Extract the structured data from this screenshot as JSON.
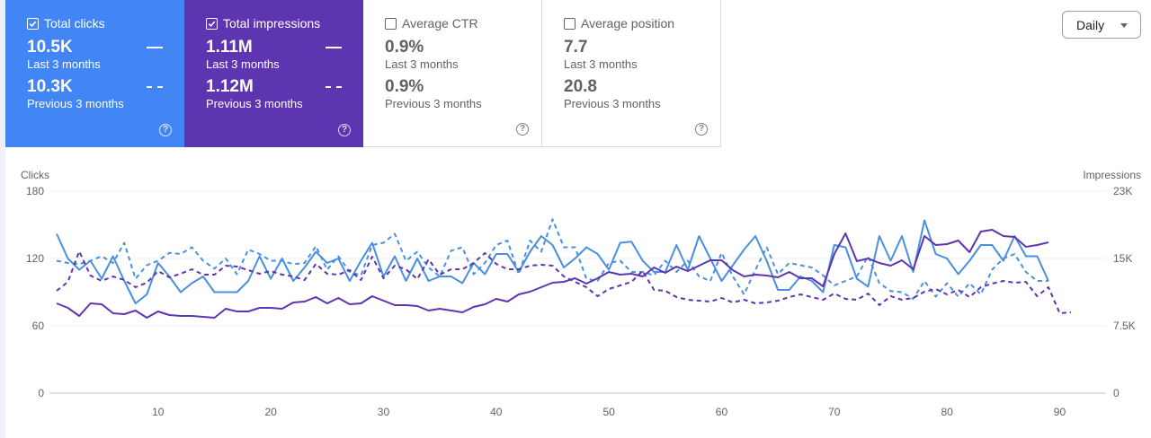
{
  "filter": {
    "granularity_label": "Daily"
  },
  "cards": [
    {
      "title": "Total clicks",
      "checked": true,
      "current_value": "10.5K",
      "current_period": "Last 3 months",
      "previous_value": "10.3K",
      "previous_period": "Previous 3 months",
      "color": "#4285f4"
    },
    {
      "title": "Total impressions",
      "checked": true,
      "current_value": "1.11M",
      "current_period": "Last 3 months",
      "previous_value": "1.12M",
      "previous_period": "Previous 3 months",
      "color": "#5e35b1"
    },
    {
      "title": "Average CTR",
      "checked": false,
      "current_value": "0.9%",
      "current_period": "Last 3 months",
      "previous_value": "0.9%",
      "previous_period": "Previous 3 months",
      "color": "#ffffff"
    },
    {
      "title": "Average position",
      "checked": false,
      "current_value": "7.7",
      "current_period": "Last 3 months",
      "previous_value": "20.8",
      "previous_period": "Previous 3 months",
      "color": "#ffffff"
    }
  ],
  "help_icon_glyph": "?",
  "chart_data": {
    "type": "line",
    "ylabel_left": "Clicks",
    "ylabel_right": "Impressions",
    "ylim_left": [
      0,
      180
    ],
    "ylim_right": [
      0,
      22500
    ],
    "yticks_left": [
      "0",
      "60",
      "120",
      "180"
    ],
    "yticks_right": [
      "0",
      "7.5K",
      "15K",
      "23K"
    ],
    "xlim": [
      1,
      92
    ],
    "xticks": [
      10,
      20,
      30,
      40,
      50,
      60,
      70,
      80,
      90
    ],
    "grid": true,
    "series": [
      {
        "axis": "left",
        "style": "solid",
        "color": "#4a8fe0",
        "values": [
          142,
          120,
          110,
          118,
          102,
          122,
          100,
          80,
          88,
          116,
          104,
          90,
          98,
          104,
          90,
          90,
          90,
          100,
          122,
          102,
          120,
          100,
          112,
          126,
          116,
          120,
          100,
          118,
          134,
          104,
          122,
          100,
          120,
          100,
          104,
          104,
          98,
          116,
          106,
          124,
          124,
          108,
          126,
          140,
          132,
          112,
          120,
          130,
          124,
          110,
          134,
          135,
          118,
          108,
          108,
          132,
          110,
          140,
          120,
          100,
          114,
          128,
          140,
          118,
          92,
          92,
          104,
          100,
          90,
          132,
          130,
          102,
          95,
          140,
          118,
          140,
          108,
          154,
          124,
          120,
          106,
          118,
          132,
          132,
          118,
          140,
          122,
          122,
          100
        ]
      },
      {
        "axis": "left",
        "style": "dashed",
        "color": "#4a8fe0",
        "values": [
          118,
          116,
          115,
          118,
          122,
          116,
          134,
          102,
          114,
          118,
          125,
          124,
          130,
          118,
          111,
          120,
          106,
          128,
          124,
          118,
          118,
          115,
          116,
          131,
          110,
          122,
          108,
          105,
          132,
          134,
          142,
          118,
          126,
          112,
          104,
          127,
          130,
          106,
          116,
          132,
          136,
          106,
          136,
          126,
          155,
          130,
          130,
          102,
          100,
          116,
          118,
          108,
          108,
          105,
          118,
          108,
          118,
          104,
          100,
          125,
          104,
          88,
          110,
          130,
          106,
          116,
          114,
          112,
          105,
          96,
          100,
          104,
          122,
          98,
          91,
          90,
          84,
          100,
          86,
          98,
          86,
          98,
          88,
          110,
          120,
          124,
          108,
          100,
          100
        ]
      },
      {
        "axis": "right",
        "style": "solid",
        "color": "#5e35b1",
        "values": [
          10000,
          9500,
          8600,
          10000,
          9900,
          8900,
          8800,
          9200,
          8400,
          9100,
          8700,
          8600,
          8600,
          8500,
          8400,
          9400,
          9100,
          9100,
          9500,
          9500,
          9400,
          10100,
          10200,
          10700,
          10000,
          10600,
          9900,
          10000,
          10800,
          10300,
          9800,
          9800,
          9700,
          9200,
          9400,
          9200,
          9000,
          9600,
          9900,
          10500,
          10200,
          11000,
          11300,
          11800,
          12300,
          12400,
          12800,
          12200,
          12800,
          13500,
          13200,
          13300,
          13000,
          14000,
          13400,
          14100,
          13600,
          14200,
          14800,
          14800,
          13700,
          13000,
          13200,
          13100,
          12900,
          13500,
          12800,
          12800,
          11900,
          15500,
          17800,
          14700,
          15000,
          14500,
          14200,
          14800,
          13800,
          17500,
          16500,
          16600,
          17000,
          15700,
          18000,
          18200,
          17500,
          17400,
          16300,
          16500,
          16800
        ]
      },
      {
        "axis": "right",
        "style": "dashed",
        "color": "#5e35b1",
        "values": [
          11400,
          12400,
          15800,
          13100,
          12500,
          13000,
          12600,
          11800,
          12300,
          13600,
          12900,
          13300,
          13800,
          13200,
          13200,
          14200,
          14100,
          13700,
          13300,
          13600,
          13200,
          13000,
          12600,
          14400,
          13300,
          13200,
          13700,
          12600,
          15200,
          12800,
          14200,
          13800,
          12700,
          14900,
          13200,
          13800,
          13800,
          14500,
          15600,
          14400,
          13800,
          13800,
          14200,
          14300,
          14200,
          13000,
          12400,
          11800,
          10800,
          11600,
          12000,
          12400,
          13600,
          11500,
          11400,
          10700,
          10400,
          10300,
          10200,
          10600,
          10100,
          10400,
          10000,
          10100,
          10300,
          10700,
          11000,
          10700,
          10400,
          11100,
          10500,
          10400,
          11100,
          9800,
          10800,
          10400,
          10600,
          11300,
          11600,
          11000,
          11500,
          10700,
          11800,
          12200,
          12500,
          12300,
          12400,
          10800,
          11800,
          8900,
          9000
        ]
      }
    ]
  }
}
